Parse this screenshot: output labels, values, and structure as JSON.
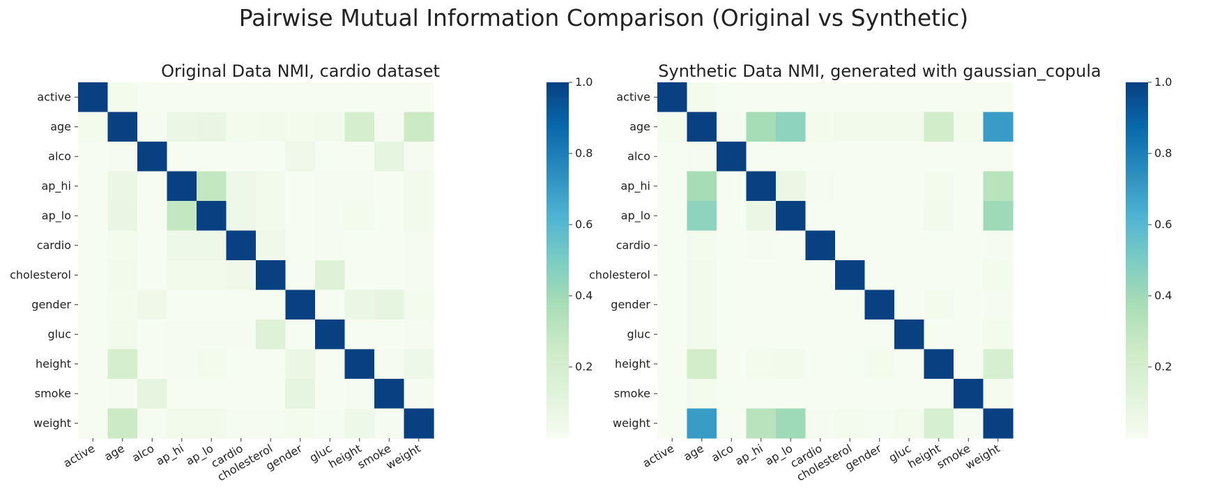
{
  "figure": {
    "suptitle": "Pairwise Mutual Information Comparison (Original vs Synthetic)",
    "colormap": "GnBu",
    "colormap_stops": [
      "#f7fcf0",
      "#e0f3db",
      "#ccebc5",
      "#a8ddb5",
      "#7bccc4",
      "#4eb3d3",
      "#2b8cbe",
      "#0868ac",
      "#084081"
    ]
  },
  "chart_data": [
    {
      "type": "heatmap",
      "title": "Original Data NMI, cardio dataset",
      "xlabel": "",
      "ylabel": "",
      "categories": [
        "active",
        "age",
        "alco",
        "ap_hi",
        "ap_lo",
        "cardio",
        "cholesterol",
        "gender",
        "gluc",
        "height",
        "smoke",
        "weight"
      ],
      "value_range": [
        0,
        1
      ],
      "colorbar_ticks": [
        "0.2",
        "0.4",
        "0.6",
        "0.8",
        "1.0"
      ],
      "colorbar_tick_values": [
        0.2,
        0.4,
        0.6,
        0.8,
        1.0
      ],
      "matrix": [
        [
          1.0,
          0.02,
          0.0,
          0.0,
          0.0,
          0.0,
          0.0,
          0.0,
          0.0,
          0.0,
          0.0,
          0.0
        ],
        [
          0.02,
          1.0,
          0.01,
          0.07,
          0.08,
          0.02,
          0.03,
          0.02,
          0.03,
          0.2,
          0.01,
          0.25
        ],
        [
          0.0,
          0.01,
          1.0,
          0.0,
          0.0,
          0.0,
          0.0,
          0.04,
          0.0,
          0.0,
          0.1,
          0.01
        ],
        [
          0.0,
          0.07,
          0.0,
          1.0,
          0.28,
          0.05,
          0.03,
          0.0,
          0.01,
          0.01,
          0.0,
          0.03
        ],
        [
          0.0,
          0.08,
          0.0,
          0.28,
          1.0,
          0.05,
          0.03,
          0.0,
          0.01,
          0.02,
          0.0,
          0.03
        ],
        [
          0.0,
          0.02,
          0.0,
          0.05,
          0.05,
          1.0,
          0.04,
          0.0,
          0.01,
          0.0,
          0.0,
          0.01
        ],
        [
          0.0,
          0.03,
          0.0,
          0.03,
          0.03,
          0.04,
          1.0,
          0.0,
          0.14,
          0.0,
          0.0,
          0.01
        ],
        [
          0.0,
          0.02,
          0.04,
          0.0,
          0.0,
          0.0,
          0.0,
          1.0,
          0.0,
          0.07,
          0.1,
          0.02
        ],
        [
          0.0,
          0.03,
          0.0,
          0.01,
          0.01,
          0.01,
          0.14,
          0.0,
          1.0,
          0.0,
          0.0,
          0.01
        ],
        [
          0.0,
          0.2,
          0.0,
          0.01,
          0.02,
          0.0,
          0.0,
          0.07,
          0.0,
          1.0,
          0.01,
          0.05
        ],
        [
          0.0,
          0.01,
          0.1,
          0.0,
          0.0,
          0.0,
          0.0,
          0.1,
          0.0,
          0.01,
          1.0,
          0.01
        ],
        [
          0.0,
          0.25,
          0.01,
          0.03,
          0.03,
          0.01,
          0.01,
          0.02,
          0.01,
          0.05,
          0.01,
          1.0
        ]
      ]
    },
    {
      "type": "heatmap",
      "title": "Synthetic Data NMI, generated with gaussian_copula",
      "xlabel": "",
      "ylabel": "",
      "categories": [
        "active",
        "age",
        "alco",
        "ap_hi",
        "ap_lo",
        "cardio",
        "cholesterol",
        "gender",
        "gluc",
        "height",
        "smoke",
        "weight"
      ],
      "value_range": [
        0,
        1
      ],
      "colorbar_ticks": [
        "0.2",
        "0.4",
        "0.6",
        "0.8",
        "1.0"
      ],
      "colorbar_tick_values": [
        0.2,
        0.4,
        0.6,
        0.8,
        1.0
      ],
      "matrix": [
        [
          1.0,
          0.02,
          0.0,
          0.0,
          0.0,
          0.0,
          0.0,
          0.0,
          0.0,
          0.0,
          0.0,
          0.0
        ],
        [
          0.02,
          1.0,
          0.01,
          0.38,
          0.45,
          0.02,
          0.03,
          0.03,
          0.03,
          0.22,
          0.02,
          0.7
        ],
        [
          0.0,
          0.01,
          1.0,
          0.0,
          0.0,
          0.0,
          0.0,
          0.0,
          0.0,
          0.0,
          0.0,
          0.0
        ],
        [
          0.0,
          0.38,
          0.0,
          1.0,
          0.07,
          0.01,
          0.0,
          0.0,
          0.0,
          0.02,
          0.0,
          0.32
        ],
        [
          0.0,
          0.45,
          0.0,
          0.07,
          1.0,
          0.0,
          0.0,
          0.0,
          0.0,
          0.03,
          0.0,
          0.4
        ],
        [
          0.0,
          0.02,
          0.0,
          0.01,
          0.0,
          1.0,
          0.0,
          0.0,
          0.0,
          0.0,
          0.0,
          0.01
        ],
        [
          0.0,
          0.03,
          0.0,
          0.0,
          0.0,
          0.0,
          1.0,
          0.0,
          0.0,
          0.0,
          0.0,
          0.02
        ],
        [
          0.0,
          0.03,
          0.0,
          0.0,
          0.0,
          0.0,
          0.0,
          1.0,
          0.0,
          0.02,
          0.0,
          0.01
        ],
        [
          0.0,
          0.03,
          0.0,
          0.0,
          0.0,
          0.0,
          0.0,
          0.0,
          1.0,
          0.0,
          0.0,
          0.02
        ],
        [
          0.0,
          0.22,
          0.0,
          0.02,
          0.03,
          0.0,
          0.0,
          0.02,
          0.0,
          1.0,
          0.0,
          0.18
        ],
        [
          0.0,
          0.02,
          0.0,
          0.0,
          0.0,
          0.0,
          0.0,
          0.0,
          0.0,
          0.0,
          1.0,
          0.01
        ],
        [
          0.0,
          0.7,
          0.0,
          0.32,
          0.4,
          0.01,
          0.02,
          0.01,
          0.02,
          0.18,
          0.01,
          1.0
        ]
      ]
    }
  ]
}
